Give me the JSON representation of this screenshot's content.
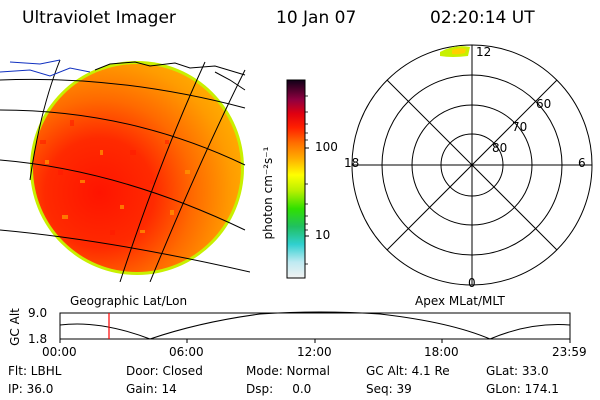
{
  "header": {
    "instrument": "Ultraviolet Imager",
    "date": "10 Jan 07",
    "time": "02:20:14 UT"
  },
  "colorbar": {
    "unit_label": "photon cm⁻²s⁻¹",
    "tick_100": "100",
    "tick_10": "10"
  },
  "polar": {
    "label_top": "12",
    "label_bottom": "0",
    "label_left": "18",
    "label_right": "6",
    "lat_60": "60",
    "lat_70": "70",
    "lat_80": "80"
  },
  "panels": {
    "left_caption": "Geographic Lat/Lon",
    "right_caption": "Apex MLat/MLT"
  },
  "altitude_plot": {
    "axis_label": "GC Alt",
    "y_top": "9.0",
    "y_bottom": "1.8",
    "x_ticks": [
      "00:00",
      "06:00",
      "12:00",
      "18:00",
      "23:59"
    ]
  },
  "info": {
    "flt": "Flt: LBHL",
    "ip": "IP: 36.0",
    "door": "Door: Closed",
    "gain": "Gain: 14",
    "mode": "Mode: Normal",
    "dsp": "Dsp:     0.0",
    "gc_alt": "GC Alt: 4.1 Re",
    "seq": "Seq: 39",
    "glat": "GLat: 33.0",
    "glon": "GLon: 174.1"
  },
  "colors": {
    "disk_orange": "#ff9a00",
    "disk_red": "#ff1a00",
    "disk_rim": "#c8f000",
    "marker_red": "#ff0000",
    "coast_blue": "#1030c0"
  }
}
